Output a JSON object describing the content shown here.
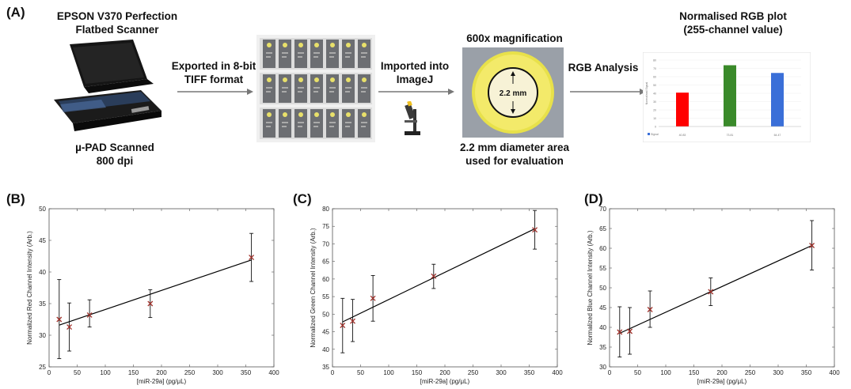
{
  "panel_a": {
    "label": "(A)",
    "scanner": {
      "title_line1": "EPSON V370  Perfection",
      "title_line2": "Flatbed Scanner",
      "caption_line1": "µ-PAD Scanned",
      "caption_line2": "800 dpi"
    },
    "arrow1": {
      "line1": "Exported in 8-bit",
      "line2": "TIFF format"
    },
    "arrow2": {
      "line1": "Imported into",
      "line2": "ImageJ"
    },
    "arrow3": {
      "line1": "RGB Analysis"
    },
    "magnification": {
      "title": "600x magnification",
      "circle_label": "2.2 mm",
      "caption_line1": "2.2 mm diameter area",
      "caption_line2": "used for evaluation"
    },
    "rgb_plot": {
      "title_line1": "Normalised RGB plot",
      "title_line2": "(255-channel value)",
      "bars": [
        {
          "value": 40.8,
          "color": "#ff0000"
        },
        {
          "value": 73.8,
          "color": "#3a8a2a"
        },
        {
          "value": 64.5,
          "color": "#3a6fd8"
        }
      ],
      "ymax": 80,
      "ticks": [
        "0",
        "10",
        "20",
        "30",
        "40",
        "50",
        "60",
        "70",
        "80"
      ],
      "ylabel": "Normalised Signal",
      "legend": "Signal",
      "table_values": [
        "40.83",
        "73.81",
        "64.47"
      ]
    }
  },
  "chart_data": [
    {
      "panel_label": "(B)",
      "type": "scatter",
      "xlabel": "[miR-29a] (pg/μL)",
      "ylabel": "Normalized Red Channel Intensity (Arb.)",
      "xlim": [
        0,
        400
      ],
      "ylim": [
        25,
        50
      ],
      "xticks": [
        0,
        50,
        100,
        150,
        200,
        250,
        300,
        350,
        400
      ],
      "yticks": [
        25,
        30,
        35,
        40,
        45,
        50
      ],
      "x": [
        18,
        36,
        72,
        180,
        360
      ],
      "y": [
        32.5,
        31.3,
        33.2,
        35.0,
        42.3
      ],
      "err_low": [
        26.3,
        27.5,
        31.3,
        32.8,
        38.5
      ],
      "err_high": [
        38.8,
        35.1,
        35.6,
        37.2,
        46.1
      ],
      "fit": [
        [
          18,
          31.6
        ],
        [
          360,
          41.9
        ]
      ]
    },
    {
      "panel_label": "(C)",
      "type": "scatter",
      "xlabel": "[miR-29a] (pg/μL)",
      "ylabel": "Normalized Green Channel Intensity (Arb.)",
      "xlim": [
        0,
        400
      ],
      "ylim": [
        35,
        80
      ],
      "xticks": [
        0,
        50,
        100,
        150,
        200,
        250,
        300,
        350,
        400
      ],
      "yticks": [
        35,
        40,
        45,
        50,
        55,
        60,
        65,
        70,
        75,
        80
      ],
      "x": [
        18,
        36,
        72,
        180,
        360
      ],
      "y": [
        46.8,
        48.0,
        54.5,
        60.8,
        74.0
      ],
      "err_low": [
        39.0,
        42.2,
        48.0,
        57.3,
        68.5
      ],
      "err_high": [
        54.5,
        54.2,
        61.0,
        64.2,
        79.5
      ],
      "fit": [
        [
          18,
          47.8
        ],
        [
          360,
          74.3
        ]
      ]
    },
    {
      "panel_label": "(D)",
      "type": "scatter",
      "xlabel": "[miR-29a] (pg/μL)",
      "ylabel": "Normalized Blue Channel Intensity (Arb.)",
      "xlim": [
        0,
        400
      ],
      "ylim": [
        30,
        70
      ],
      "xticks": [
        0,
        50,
        100,
        150,
        200,
        250,
        300,
        350,
        400
      ],
      "yticks": [
        30,
        35,
        40,
        45,
        50,
        55,
        60,
        65,
        70
      ],
      "x": [
        18,
        36,
        72,
        180,
        360
      ],
      "y": [
        38.8,
        39.0,
        44.5,
        49.0,
        60.7
      ],
      "err_low": [
        32.5,
        33.2,
        40.0,
        45.5,
        54.5
      ],
      "err_high": [
        45.2,
        45.0,
        49.2,
        52.5,
        67.0
      ],
      "fit": [
        [
          18,
          38.5
        ],
        [
          360,
          60.7
        ]
      ]
    }
  ]
}
